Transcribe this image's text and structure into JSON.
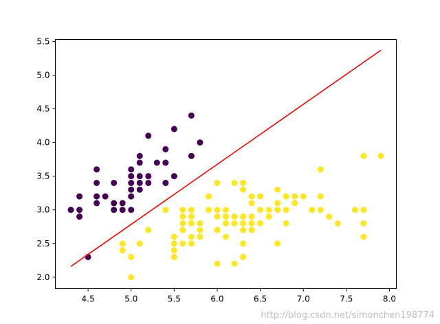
{
  "chart_data": {
    "type": "scatter",
    "title": "",
    "xlabel": "",
    "ylabel": "",
    "xlim": [
      4.12,
      8.08
    ],
    "ylim": [
      1.83,
      5.53
    ],
    "xticks": [
      "4.5",
      "5.0",
      "5.5",
      "6.0",
      "6.5",
      "7.0",
      "7.5",
      "8.0"
    ],
    "yticks": [
      "2.0",
      "2.5",
      "3.0",
      "3.5",
      "4.0",
      "4.5",
      "5.0",
      "5.5"
    ],
    "grid": false,
    "series": [
      {
        "color": "#440154",
        "points": [
          [
            4.3,
            3.0
          ],
          [
            4.4,
            3.2
          ],
          [
            4.4,
            3.0
          ],
          [
            4.4,
            2.9
          ],
          [
            4.5,
            2.3
          ],
          [
            4.6,
            3.6
          ],
          [
            4.6,
            3.4
          ],
          [
            4.6,
            3.2
          ],
          [
            4.6,
            3.1
          ],
          [
            4.7,
            3.2
          ],
          [
            4.8,
            3.4
          ],
          [
            4.8,
            3.1
          ],
          [
            4.8,
            3.0
          ],
          [
            4.9,
            3.1
          ],
          [
            4.9,
            3.0
          ],
          [
            5.0,
            3.6
          ],
          [
            5.0,
            3.5
          ],
          [
            5.0,
            3.4
          ],
          [
            5.0,
            3.3
          ],
          [
            5.0,
            3.2
          ],
          [
            5.0,
            3.0
          ],
          [
            5.1,
            3.8
          ],
          [
            5.1,
            3.7
          ],
          [
            5.1,
            3.5
          ],
          [
            5.1,
            3.4
          ],
          [
            5.1,
            3.3
          ],
          [
            5.2,
            4.1
          ],
          [
            5.2,
            3.5
          ],
          [
            5.2,
            3.4
          ],
          [
            5.3,
            3.7
          ],
          [
            5.4,
            3.9
          ],
          [
            5.4,
            3.7
          ],
          [
            5.4,
            3.4
          ],
          [
            5.5,
            4.2
          ],
          [
            5.5,
            3.5
          ],
          [
            5.7,
            4.4
          ],
          [
            5.7,
            3.8
          ],
          [
            5.8,
            4.0
          ]
        ]
      },
      {
        "color": "#fde725",
        "points": [
          [
            4.9,
            2.5
          ],
          [
            4.9,
            2.4
          ],
          [
            5.0,
            2.3
          ],
          [
            5.0,
            2.0
          ],
          [
            5.1,
            2.5
          ],
          [
            5.2,
            2.7
          ],
          [
            5.4,
            3.0
          ],
          [
            5.5,
            2.6
          ],
          [
            5.5,
            2.5
          ],
          [
            5.5,
            2.4
          ],
          [
            5.5,
            2.3
          ],
          [
            5.6,
            3.0
          ],
          [
            5.6,
            2.9
          ],
          [
            5.6,
            2.8
          ],
          [
            5.6,
            2.7
          ],
          [
            5.6,
            2.5
          ],
          [
            5.7,
            3.0
          ],
          [
            5.7,
            2.9
          ],
          [
            5.7,
            2.8
          ],
          [
            5.7,
            2.6
          ],
          [
            5.7,
            2.5
          ],
          [
            5.8,
            2.8
          ],
          [
            5.8,
            2.7
          ],
          [
            5.8,
            2.6
          ],
          [
            5.9,
            3.2
          ],
          [
            5.9,
            3.0
          ],
          [
            6.0,
            3.4
          ],
          [
            6.0,
            3.0
          ],
          [
            6.0,
            2.9
          ],
          [
            6.0,
            2.7
          ],
          [
            6.0,
            2.2
          ],
          [
            6.1,
            3.0
          ],
          [
            6.1,
            2.9
          ],
          [
            6.1,
            2.8
          ],
          [
            6.1,
            2.6
          ],
          [
            6.2,
            3.4
          ],
          [
            6.2,
            2.9
          ],
          [
            6.2,
            2.8
          ],
          [
            6.2,
            2.2
          ],
          [
            6.3,
            3.4
          ],
          [
            6.3,
            3.3
          ],
          [
            6.3,
            2.9
          ],
          [
            6.3,
            2.8
          ],
          [
            6.3,
            2.7
          ],
          [
            6.3,
            2.5
          ],
          [
            6.3,
            2.3
          ],
          [
            6.4,
            3.2
          ],
          [
            6.4,
            3.1
          ],
          [
            6.4,
            2.9
          ],
          [
            6.4,
            2.8
          ],
          [
            6.4,
            2.7
          ],
          [
            6.5,
            3.2
          ],
          [
            6.5,
            3.0
          ],
          [
            6.5,
            2.8
          ],
          [
            6.6,
            3.0
          ],
          [
            6.6,
            2.9
          ],
          [
            6.7,
            3.3
          ],
          [
            6.7,
            3.1
          ],
          [
            6.7,
            3.0
          ],
          [
            6.7,
            2.5
          ],
          [
            6.8,
            3.2
          ],
          [
            6.8,
            3.0
          ],
          [
            6.8,
            2.8
          ],
          [
            6.9,
            3.2
          ],
          [
            6.9,
            3.1
          ],
          [
            7.0,
            3.2
          ],
          [
            7.1,
            3.0
          ],
          [
            7.2,
            3.6
          ],
          [
            7.2,
            3.2
          ],
          [
            7.2,
            3.0
          ],
          [
            7.3,
            2.9
          ],
          [
            7.4,
            2.8
          ],
          [
            7.6,
            3.0
          ],
          [
            7.7,
            3.8
          ],
          [
            7.7,
            3.0
          ],
          [
            7.7,
            2.8
          ],
          [
            7.7,
            2.6
          ],
          [
            7.9,
            3.8
          ]
        ]
      }
    ],
    "decision_line": {
      "color": "#ff0000",
      "x": [
        4.3,
        7.9
      ],
      "y": [
        2.16,
        5.37
      ]
    }
  },
  "watermark": "http://blog.csdn.net/simonchen198774"
}
